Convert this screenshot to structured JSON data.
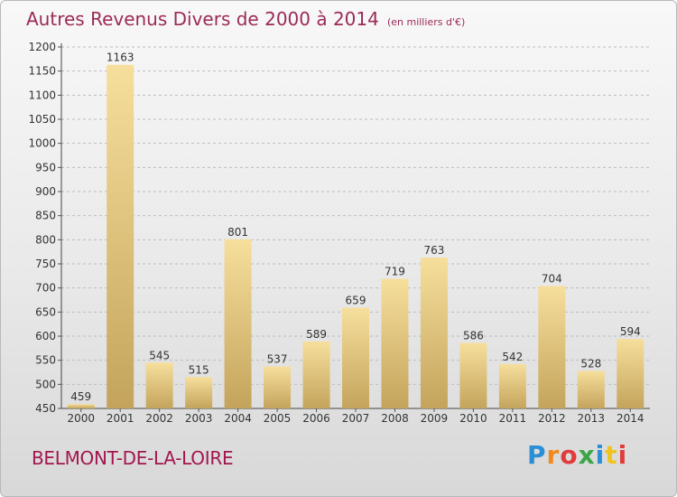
{
  "header": {
    "title": "Autres Revenus Divers de 2000 à 2014",
    "unit": "(en milliers d'€)"
  },
  "footer": {
    "place": "BELMONT-DE-LA-LOIRE",
    "brand": "Proxiti"
  },
  "colors": {
    "title": "#9b2a57",
    "place": "#a3164f",
    "bar_light": "#f6df9c",
    "bar_dark": "#c4a45c"
  },
  "chart_data": {
    "type": "bar",
    "title": "Autres Revenus Divers de 2000 à 2014",
    "subtitle": "(en milliers d'€)",
    "categories": [
      "2000",
      "2001",
      "2002",
      "2003",
      "2004",
      "2005",
      "2006",
      "2007",
      "2008",
      "2009",
      "2010",
      "2011",
      "2012",
      "2013",
      "2014"
    ],
    "values": [
      459,
      1163,
      545,
      515,
      801,
      537,
      589,
      659,
      719,
      763,
      586,
      542,
      704,
      528,
      594
    ],
    "ylim": [
      450,
      1200
    ],
    "yticks": [
      450,
      500,
      550,
      600,
      650,
      700,
      750,
      800,
      850,
      900,
      950,
      1000,
      1050,
      1100,
      1150,
      1200
    ],
    "grid": "horizontal dashed",
    "legend": "none"
  }
}
